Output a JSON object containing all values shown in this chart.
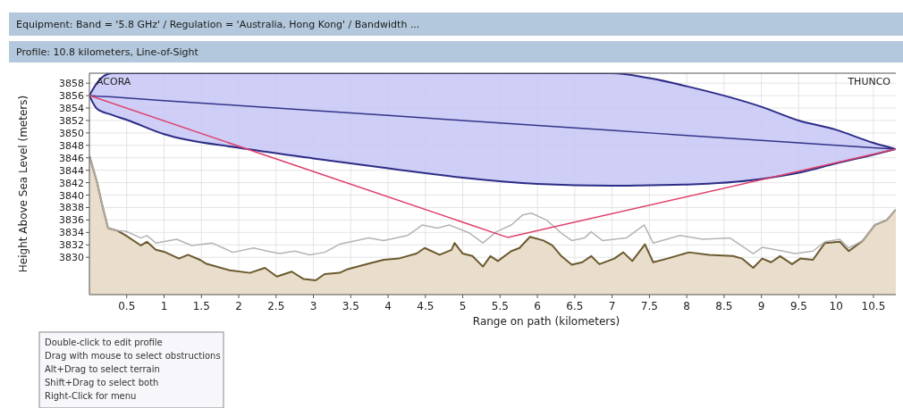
{
  "chart_data": {
    "type": "line",
    "title": "Equipment: Band = '5.8 GHz' / Regulation = 'Australia, Hong Kong' / Bandwidth ...",
    "subtitle": "Profile: 10.8 kilometers, Line-of-Sight",
    "xlabel": "Range on path (kilometers)",
    "ylabel": "Height Above Sea Level (meters)",
    "xlim": [
      0,
      10.8
    ],
    "ylim": [
      3824,
      3859.6
    ],
    "xticks": [
      0.5,
      1,
      1.5,
      2,
      2.5,
      3,
      3.5,
      4,
      4.5,
      5,
      5.5,
      6,
      6.5,
      7,
      7.5,
      8,
      8.5,
      9,
      9.5,
      10,
      10.5
    ],
    "yticks": [
      3830,
      3832,
      3834,
      3836,
      3838,
      3840,
      3842,
      3844,
      3846,
      3848,
      3850,
      3852,
      3854,
      3856,
      3858
    ],
    "grid": true,
    "series": [
      {
        "type": "area",
        "color": "#6b5a2e",
        "x": [
          0,
          0.1,
          0.17,
          0.25,
          0.37,
          0.49,
          0.69,
          0.77,
          0.89,
          1.0,
          1.2,
          1.32,
          1.48,
          1.56,
          1.88,
          2.15,
          2.35,
          2.51,
          2.71,
          2.87,
          3.03,
          3.15,
          3.35,
          3.46,
          3.74,
          3.94,
          4.14,
          4.38,
          4.49,
          4.69,
          4.85,
          4.89,
          5.0,
          5.13,
          5.27,
          5.37,
          5.47,
          5.65,
          5.76,
          5.9,
          6.08,
          6.2,
          6.32,
          6.46,
          6.6,
          6.72,
          6.83,
          7.03,
          7.15,
          7.27,
          7.44,
          7.55,
          7.74,
          8.03,
          8.3,
          8.62,
          8.74,
          8.89,
          9.01,
          9.13,
          9.25,
          9.41,
          9.52,
          9.69,
          9.85,
          10.05,
          10.17,
          10.36,
          10.52,
          10.68,
          10.8
        ],
        "values": [
          3846.3,
          3842.2,
          3838.5,
          3834.7,
          3834.3,
          3833.5,
          3831.9,
          3832.5,
          3831.2,
          3830.9,
          3829.8,
          3830.4,
          3829.6,
          3829.0,
          3827.9,
          3827.5,
          3828.3,
          3826.9,
          3827.7,
          3826.5,
          3826.3,
          3827.3,
          3827.5,
          3828.1,
          3829.0,
          3829.6,
          3829.8,
          3830.6,
          3831.5,
          3830.4,
          3831.2,
          3832.3,
          3830.6,
          3830.2,
          3828.5,
          3830.2,
          3829.4,
          3831.0,
          3831.5,
          3833.3,
          3832.7,
          3831.9,
          3830.2,
          3828.8,
          3829.2,
          3830.2,
          3828.9,
          3829.8,
          3830.8,
          3829.4,
          3832.1,
          3829.2,
          3829.8,
          3830.8,
          3830.4,
          3830.2,
          3829.8,
          3828.3,
          3829.8,
          3829.2,
          3830.2,
          3828.9,
          3829.8,
          3829.6,
          3832.3,
          3832.5,
          3831.0,
          3832.7,
          3835.2,
          3836.0,
          3837.7
        ]
      },
      {
        "color": "#b4b4b4",
        "x": [
          0,
          0.1,
          0.17,
          0.25,
          0.37,
          0.49,
          0.69,
          0.77,
          0.89,
          1.17,
          1.37,
          1.64,
          1.92,
          2.2,
          2.38,
          2.55,
          2.75,
          2.95,
          3.15,
          3.35,
          3.74,
          3.94,
          4.26,
          4.46,
          4.66,
          4.82,
          5.09,
          5.27,
          5.45,
          5.65,
          5.8,
          5.92,
          6.12,
          6.32,
          6.46,
          6.63,
          6.72,
          6.87,
          7.19,
          7.43,
          7.55,
          7.91,
          8.22,
          8.58,
          8.89,
          9.01,
          9.29,
          9.45,
          9.69,
          9.85,
          10.05,
          10.17,
          10.36,
          10.52,
          10.68,
          10.8
        ],
        "values": [
          3846.3,
          3842.2,
          3838.5,
          3834.7,
          3834.3,
          3834.2,
          3833.1,
          3833.5,
          3832.3,
          3832.9,
          3831.9,
          3832.3,
          3830.8,
          3831.5,
          3831.0,
          3830.6,
          3831.0,
          3830.4,
          3830.8,
          3832.1,
          3833.1,
          3832.7,
          3833.5,
          3835.2,
          3834.7,
          3835.2,
          3833.9,
          3832.3,
          3834.1,
          3835.2,
          3836.8,
          3837.1,
          3836.0,
          3833.9,
          3832.7,
          3833.1,
          3834.1,
          3832.7,
          3833.1,
          3835.2,
          3832.3,
          3833.5,
          3832.9,
          3833.1,
          3830.6,
          3831.6,
          3831.0,
          3830.6,
          3831.0,
          3832.5,
          3832.9,
          3831.5,
          3832.7,
          3835.2,
          3836.0,
          3837.7
        ]
      },
      {
        "color": "#33338a",
        "x": [
          0,
          0.1,
          0.3,
          0.5,
          1,
          2,
          3,
          4,
          5,
          6,
          7,
          7.5,
          8,
          9,
          9.5,
          10,
          10.5,
          10.8
        ],
        "values": [
          3856,
          3855.9,
          3855.8,
          3855.6,
          3855.2,
          3854.4,
          3853.6,
          3852.8,
          3852.0,
          3851.2,
          3850.4,
          3850.0,
          3849.6,
          3848.8,
          3848.4,
          3848.0,
          3847.6,
          3847.4
        ],
        "lower": [
          3856,
          3853.9,
          3852.9,
          3852.1,
          3849.8,
          3847.6,
          3845.9,
          3844.3,
          3842.8,
          3841.8,
          3841.5,
          3841.6,
          3841.7,
          3842.6,
          3843.6,
          3845.1,
          3846.5,
          3847.4
        ],
        "upper": [
          3856,
          3858,
          3859.6,
          3859.6,
          3859.6,
          3859.6,
          3859.6,
          3859.6,
          3859.6,
          3859.6,
          3859.6,
          3858.8,
          3857.5,
          3854.2,
          3852.0,
          3850.5,
          3848.4,
          3847.4
        ]
      },
      {
        "color": "#e0406a",
        "x": [
          0,
          5.6,
          10.8
        ],
        "values": [
          3856,
          3833.2,
          3847.4
        ]
      }
    ],
    "annotations": [
      "ACORA",
      "THUNCO",
      "Double-click to edit profile",
      "Drag with mouse to select obstructions",
      "Alt+Drag to select terrain",
      "Shift+Drag to select both",
      "Right-Click for menu"
    ]
  }
}
